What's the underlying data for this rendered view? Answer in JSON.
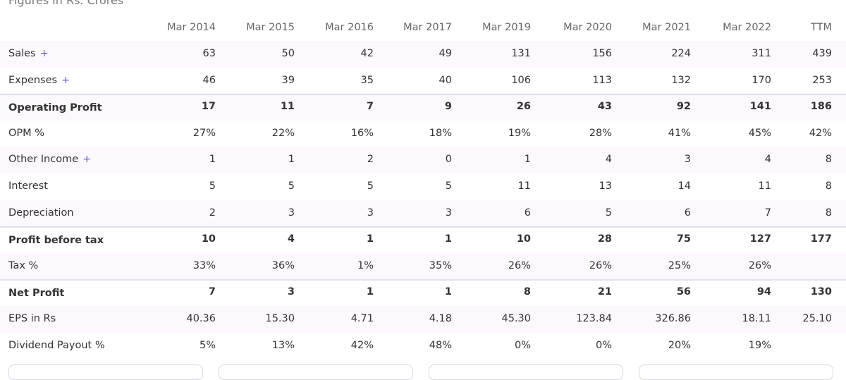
{
  "caption": "Figures in Rs. Crores",
  "table": {
    "columns": [
      "Mar 2014",
      "Mar 2015",
      "Mar 2016",
      "Mar 2017",
      "Mar 2019",
      "Mar 2020",
      "Mar 2021",
      "Mar 2022",
      "TTM"
    ],
    "rows": [
      {
        "label": "Sales",
        "expand": "+",
        "values": [
          "63",
          "50",
          "42",
          "49",
          "131",
          "156",
          "224",
          "311",
          "439"
        ]
      },
      {
        "label": "Expenses",
        "expand": "+",
        "values": [
          "46",
          "39",
          "35",
          "40",
          "106",
          "113",
          "132",
          "170",
          "253"
        ]
      },
      {
        "label": "Operating Profit",
        "bold": true,
        "values": [
          "17",
          "11",
          "7",
          "9",
          "26",
          "43",
          "92",
          "141",
          "186"
        ]
      },
      {
        "label": "OPM %",
        "values": [
          "27%",
          "22%",
          "16%",
          "18%",
          "19%",
          "28%",
          "41%",
          "45%",
          "42%"
        ]
      },
      {
        "label": "Other Income",
        "expand": "+",
        "values": [
          "1",
          "1",
          "2",
          "0",
          "1",
          "4",
          "3",
          "4",
          "8"
        ]
      },
      {
        "label": "Interest",
        "values": [
          "5",
          "5",
          "5",
          "5",
          "11",
          "13",
          "14",
          "11",
          "8"
        ]
      },
      {
        "label": "Depreciation",
        "values": [
          "2",
          "3",
          "3",
          "3",
          "6",
          "5",
          "6",
          "7",
          "8"
        ]
      },
      {
        "label": "Profit before tax",
        "bold": true,
        "values": [
          "10",
          "4",
          "1",
          "1",
          "10",
          "28",
          "75",
          "127",
          "177"
        ]
      },
      {
        "label": "Tax %",
        "values": [
          "33%",
          "36%",
          "1%",
          "35%",
          "26%",
          "26%",
          "25%",
          "26%",
          null
        ]
      },
      {
        "label": "Net Profit",
        "bold": true,
        "values": [
          "7",
          "3",
          "1",
          "1",
          "8",
          "21",
          "56",
          "94",
          "130"
        ]
      },
      {
        "label": "EPS in Rs",
        "values": [
          "40.36",
          "15.30",
          "4.71",
          "4.18",
          "45.30",
          "123.84",
          "326.86",
          "18.11",
          "25.10"
        ]
      },
      {
        "label": "Dividend Payout %",
        "values": [
          "5%",
          "13%",
          "42%",
          "48%",
          "0%",
          "0%",
          "20%",
          "19%",
          null
        ]
      }
    ]
  }
}
